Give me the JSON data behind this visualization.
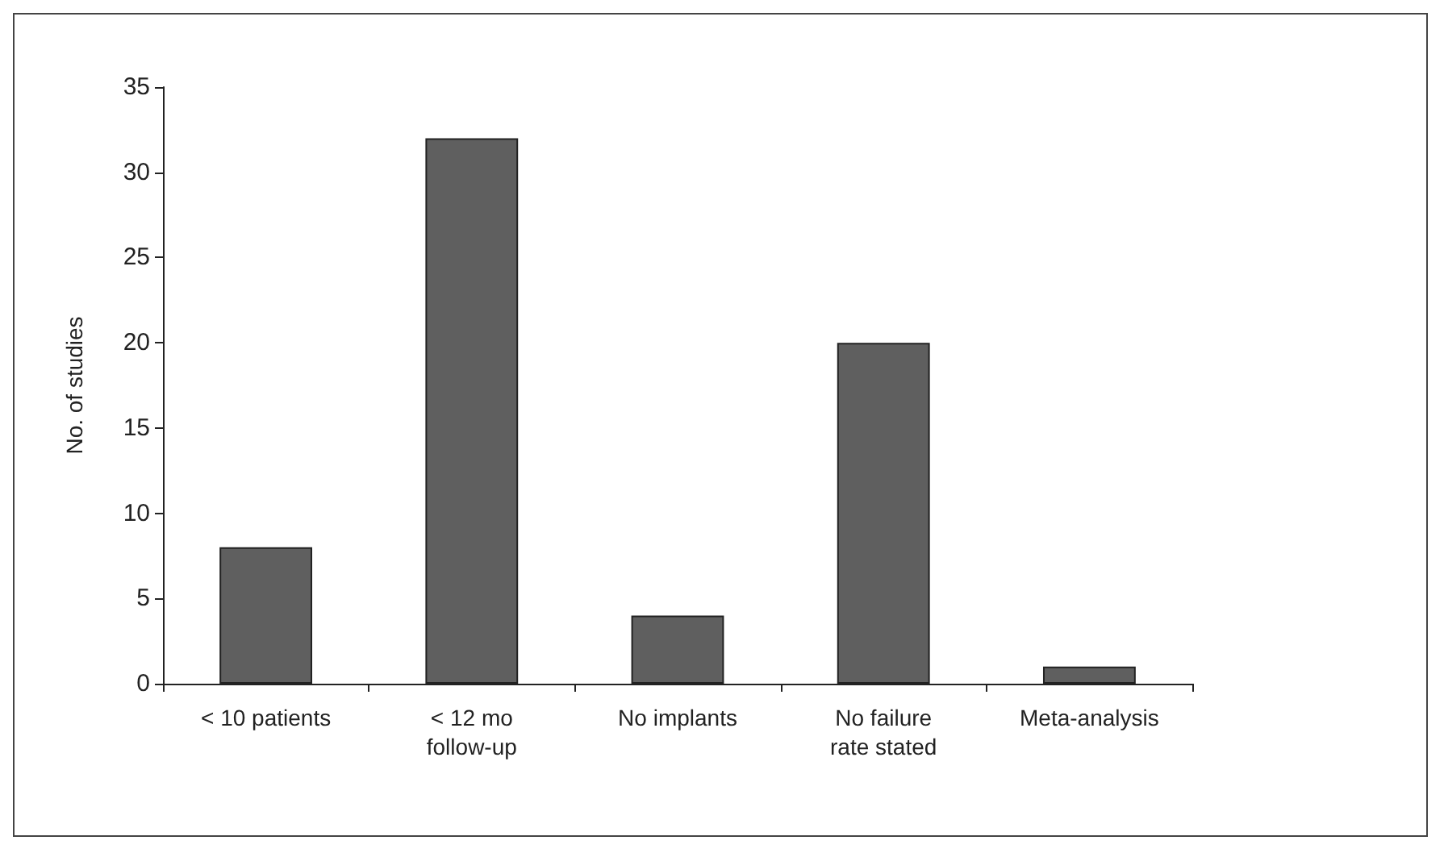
{
  "chart_data": {
    "type": "bar",
    "ylabel": "No. of studies",
    "categories": [
      "< 10 patients",
      "< 12 mo\nfollow-up",
      "No implants",
      "No failure\nrate stated",
      "Meta-analysis"
    ],
    "values": [
      8,
      32,
      4,
      20,
      1
    ],
    "color": "#5f5f5f",
    "ylim": [
      0,
      35
    ],
    "yticks": [
      0,
      5,
      10,
      15,
      20,
      25,
      30,
      35
    ],
    "grid": false
  }
}
